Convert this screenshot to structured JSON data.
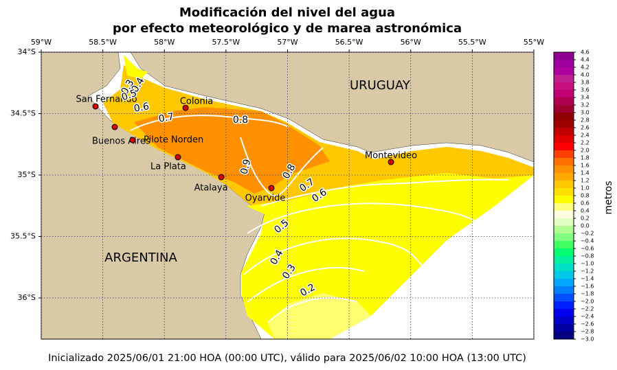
{
  "title": [
    "Modificación del nivel del agua",
    "por efecto meteorológico y de marea astronómica"
  ],
  "map": {
    "xlim": [
      -59,
      -55
    ],
    "ylim": [
      -36.335,
      -34
    ],
    "xticks": [
      {
        "value": -59,
        "label": "59°W"
      },
      {
        "value": -58.5,
        "label": "58.5°W"
      },
      {
        "value": -58,
        "label": "58°W"
      },
      {
        "value": -57.5,
        "label": "57.5°W"
      },
      {
        "value": -57,
        "label": "57°W"
      },
      {
        "value": -56.5,
        "label": "56.5°W"
      },
      {
        "value": -56,
        "label": "56°W"
      },
      {
        "value": -55.5,
        "label": "55.5°W"
      },
      {
        "value": -55,
        "label": "55°W"
      }
    ],
    "yticks": [
      {
        "value": -34,
        "label": "34°S"
      },
      {
        "value": -34.5,
        "label": "34.5°S"
      },
      {
        "value": -35,
        "label": "35°S"
      },
      {
        "value": -35.5,
        "label": "35.5°S"
      },
      {
        "value": -36,
        "label": "36°S"
      }
    ],
    "grid": true,
    "countries": [
      "URUGUAY",
      "ARGENTINA"
    ],
    "stations": [
      {
        "name": "San Fernando",
        "lon": -58.559,
        "lat": -34.441
      },
      {
        "name": "Buenos Aires",
        "lon": -58.403,
        "lat": -34.609
      },
      {
        "name": "Pilote Norden",
        "lon": -58.258,
        "lat": -34.715
      },
      {
        "name": "Colonia",
        "lon": -57.828,
        "lat": -34.453
      },
      {
        "name": "La Plata",
        "lon": -57.89,
        "lat": -34.855
      },
      {
        "name": "Atalaya",
        "lon": -57.538,
        "lat": -35.017
      },
      {
        "name": "Oyarvide",
        "lon": -57.131,
        "lat": -35.106
      },
      {
        "name": "Montevideo",
        "lon": -56.16,
        "lat": -34.894
      }
    ],
    "contour_labels": [
      0.3,
      0.4,
      0.5,
      0.6,
      0.7,
      0.8,
      0.9,
      0.8,
      0.7,
      0.6,
      0.5,
      0.4,
      0.3,
      0.2
    ]
  },
  "colorbar": {
    "label": "metros",
    "lim": [
      -3,
      4.6
    ],
    "ticks": [
      {
        "value": -3,
        "label": "−3.0"
      },
      {
        "value": -2.8,
        "label": "−2.8"
      },
      {
        "value": -2.6,
        "label": "−2.6"
      },
      {
        "value": -2.4,
        "label": "−2.4"
      },
      {
        "value": -2.2,
        "label": "−2.2"
      },
      {
        "value": -2,
        "label": "−2.0"
      },
      {
        "value": -1.8,
        "label": "−1.8"
      },
      {
        "value": -1.6,
        "label": "−1.6"
      },
      {
        "value": -1.4,
        "label": "−1.4"
      },
      {
        "value": -1.2,
        "label": "−1.2"
      },
      {
        "value": -1,
        "label": "−1.0"
      },
      {
        "value": -0.8,
        "label": "−0.8"
      },
      {
        "value": -0.6,
        "label": "−0.6"
      },
      {
        "value": -0.4,
        "label": "−0.4"
      },
      {
        "value": -0.2,
        "label": "−0.2"
      },
      {
        "value": 0,
        "label": "0.0"
      },
      0.2,
      0.4,
      0.6,
      0.8,
      {
        "value": 1,
        "label": "1.0"
      },
      1.2,
      1.4,
      1.6,
      1.8,
      {
        "value": 2,
        "label": "2.0"
      },
      2.2,
      2.4,
      2.6,
      2.8,
      {
        "value": 3,
        "label": "3.0"
      },
      3.2,
      3.4,
      3.6,
      3.8,
      {
        "value": 4,
        "label": "4.0"
      },
      4.2,
      4.4,
      4.6
    ],
    "colors": [
      "#000080",
      "#0000a0",
      "#0000c8",
      "#0000f0",
      "#0020ff",
      "#0050ff",
      "#0080ff",
      "#00a8ff",
      "#00c8e8",
      "#00e0c8",
      "#00f0a0",
      "#00ff70",
      "#40ff60",
      "#80ff80",
      "#b0ff90",
      "#e0ffc0",
      "#ffffe0",
      "#ffff80",
      "#ffff00",
      "#ffe000",
      "#ffc800",
      "#ffa800",
      "#ff9000",
      "#ff7000",
      "#ff4000",
      "#ff0000",
      "#e00000",
      "#c00000",
      "#a00000",
      "#900000",
      "#a00030",
      "#b00050",
      "#c00070",
      "#c81080",
      "#c02090",
      "#b000a0",
      "#a000a0",
      "#900090"
    ]
  },
  "footer": "Inicializado 2025/06/01 21:00 HOA (00:00 UTC), válido para 2025/06/02 10:00 HOA (13:00 UTC)"
}
